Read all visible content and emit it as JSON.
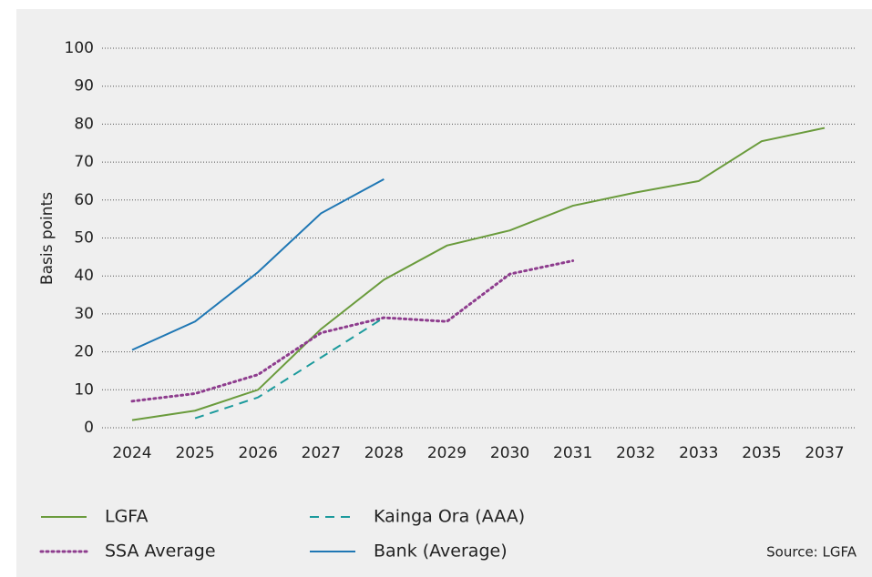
{
  "chart_data": {
    "type": "line",
    "y_label": "Basis points",
    "source": "Source: LGFA",
    "categories": [
      "2024",
      "2025",
      "2026",
      "2027",
      "2028",
      "2029",
      "2030",
      "2031",
      "2032",
      "2033",
      "2035",
      "2037"
    ],
    "series": [
      {
        "name": "LGFA",
        "color": "#6a9b3c",
        "dash": "solid",
        "values": [
          2,
          4.5,
          10,
          26,
          39,
          48,
          52,
          58.5,
          62,
          65,
          75.5,
          79
        ]
      },
      {
        "name": "SSA Average",
        "color": "#8e3d8e",
        "dash": "dotted",
        "values": [
          7,
          9,
          14,
          25,
          29,
          28,
          40.5,
          44,
          null,
          null,
          null,
          null
        ]
      },
      {
        "name": "Kainga Ora (AAA)",
        "color": "#1b9a9c",
        "dash": "dashed",
        "values": [
          null,
          2.5,
          8,
          18.5,
          29,
          null,
          null,
          null,
          null,
          null,
          null,
          null
        ]
      },
      {
        "name": "Bank (Average)",
        "color": "#1f77b4",
        "dash": "solid",
        "values": [
          20.5,
          28,
          41,
          56.5,
          65.5,
          null,
          null,
          null,
          null,
          null,
          null,
          null
        ]
      }
    ],
    "ylim": [
      0,
      100
    ],
    "yticks": [
      0,
      10,
      20,
      30,
      40,
      50,
      60,
      70,
      80,
      90,
      100
    ],
    "grid": true
  }
}
